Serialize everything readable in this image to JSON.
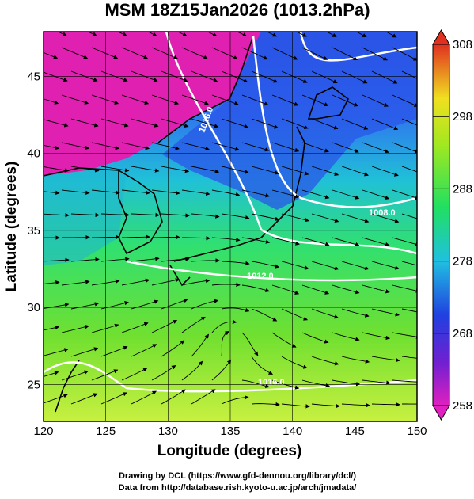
{
  "title": "MSM 18Z15Jan2026 (1013.2hPa)",
  "map": {
    "xlabel": "Longitude (degrees)",
    "ylabel": "Latitude  (degrees)",
    "xlim": [
      120,
      150
    ],
    "ylim": [
      22.6,
      47.9
    ],
    "xticks": [
      120,
      125,
      130,
      135,
      140,
      145,
      150
    ],
    "yticks": [
      25,
      30,
      35,
      40,
      45
    ],
    "contour_labels": [
      "1016.0",
      "1008.0",
      "1012.0",
      "1016.0"
    ]
  },
  "colorbar": {
    "lim": [
      258,
      308
    ],
    "ticks": [
      258,
      268,
      278,
      288,
      298,
      308
    ]
  },
  "credits": [
    "Drawing by DCL (https://www.gfd-dennou.org/library/dcl/)",
    "Data from http://database.rish.kyoto-u.ac.jp/arch/jmadata/"
  ]
}
